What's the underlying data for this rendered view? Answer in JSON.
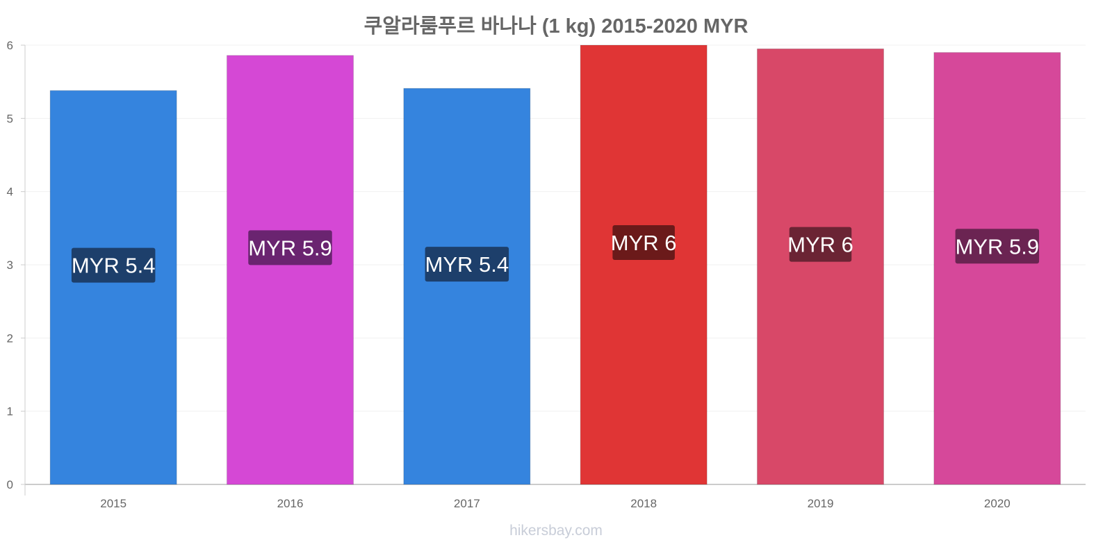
{
  "chart_data": {
    "type": "bar",
    "title": "쿠알라룸푸르 바나나 (1 kg) 2015-2020 MYR",
    "categories": [
      "2015",
      "2016",
      "2017",
      "2018",
      "2019",
      "2020"
    ],
    "values": [
      5.38,
      5.86,
      5.41,
      6.0,
      5.95,
      5.9
    ],
    "data_labels": [
      "MYR 5.4",
      "MYR 5.9",
      "MYR 5.4",
      "MYR 6",
      "MYR 6",
      "MYR 5.9"
    ],
    "colors": [
      "#3584de",
      "#d548d5",
      "#3584de",
      "#e03535",
      "#d84868",
      "#d6489a"
    ],
    "label_colors": [
      "#1d3f6b",
      "#6a2470",
      "#1d3f6b",
      "#6b1a1a",
      "#6b2434",
      "#6b2452"
    ],
    "xlabel": "",
    "ylabel": "",
    "ylim": [
      0,
      6
    ],
    "yticks": [
      "0",
      "1",
      "2",
      "3",
      "4",
      "5",
      "6"
    ],
    "grid": true,
    "legend": "none"
  },
  "watermark": "hikersbay.com"
}
